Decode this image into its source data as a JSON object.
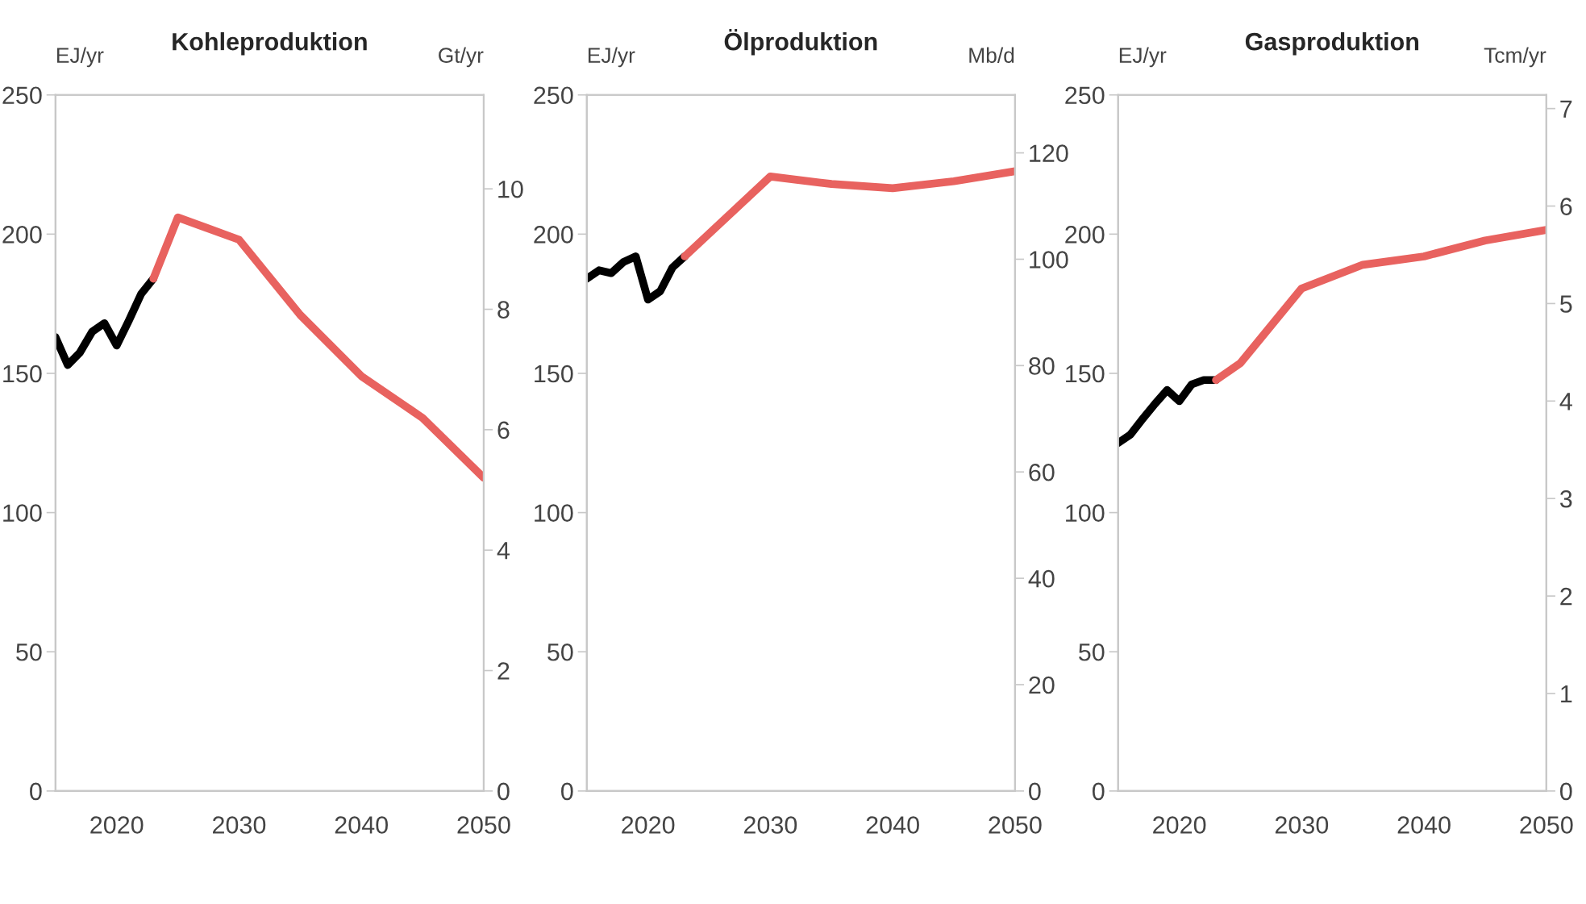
{
  "chart_data": [
    {
      "type": "line",
      "title": "Kohleproduktion",
      "ylabel": "EJ/yr",
      "y2label": "Gt/yr",
      "xlim": [
        2015,
        2050
      ],
      "xticks": [
        2020,
        2030,
        2040,
        2050
      ],
      "ylim": [
        0,
        250
      ],
      "yticks": [
        0,
        50,
        100,
        150,
        200,
        250
      ],
      "y2lim": [
        0,
        11.56
      ],
      "y2ticks": [
        0,
        2,
        4,
        6,
        8,
        10
      ],
      "series": [
        {
          "color": "#000000",
          "x": [
            2015,
            2016,
            2017,
            2018,
            2019,
            2020,
            2021,
            2022,
            2023
          ],
          "values": [
            163,
            153,
            157.5,
            165,
            168,
            160,
            169,
            178.5,
            184
          ]
        },
        {
          "color": "#e8625f",
          "x": [
            2023,
            2025,
            2030,
            2035,
            2040,
            2045,
            2050
          ],
          "values": [
            184,
            206,
            198,
            171,
            149,
            134,
            112.5
          ]
        }
      ]
    },
    {
      "type": "line",
      "title": "Ölproduktion",
      "ylabel": "EJ/yr",
      "y2label": "Mb/d",
      "xlim": [
        2015,
        2050
      ],
      "xticks": [
        2020,
        2030,
        2040,
        2050
      ],
      "ylim": [
        0,
        250
      ],
      "yticks": [
        0,
        50,
        100,
        150,
        200,
        250
      ],
      "y2lim": [
        0,
        130.9
      ],
      "y2ticks": [
        0,
        20,
        40,
        60,
        80,
        100,
        120
      ],
      "series": [
        {
          "color": "#000000",
          "x": [
            2015,
            2016,
            2017,
            2018,
            2019,
            2020,
            2021,
            2022,
            2023
          ],
          "values": [
            184,
            187,
            186,
            190,
            192,
            176.5,
            179.5,
            188,
            192
          ]
        },
        {
          "color": "#e8625f",
          "x": [
            2023,
            2030,
            2035,
            2040,
            2045,
            2050
          ],
          "values": [
            192,
            220.7,
            218,
            216.5,
            219,
            222.6
          ]
        }
      ]
    },
    {
      "type": "line",
      "title": "Gasproduktion",
      "ylabel": "EJ/yr",
      "y2label": "Tcm/yr",
      "xlim": [
        2015,
        2050
      ],
      "xticks": [
        2020,
        2030,
        2040,
        2050
      ],
      "ylim": [
        0,
        250
      ],
      "yticks": [
        0,
        50,
        100,
        150,
        200,
        250
      ],
      "y2lim": [
        0,
        7.14
      ],
      "y2ticks": [
        0,
        1,
        2,
        3,
        4,
        5,
        6,
        7
      ],
      "series": [
        {
          "color": "#000000",
          "x": [
            2015,
            2016,
            2017,
            2018,
            2019,
            2020,
            2021,
            2022,
            2023
          ],
          "values": [
            125,
            128,
            133.6,
            139,
            144,
            140,
            146,
            147.6,
            147.6
          ]
        },
        {
          "color": "#e8625f",
          "x": [
            2023,
            2025,
            2030,
            2035,
            2040,
            2045,
            2050
          ],
          "values": [
            147.6,
            153.7,
            180.5,
            189,
            192,
            197.7,
            201.5
          ]
        }
      ]
    }
  ]
}
